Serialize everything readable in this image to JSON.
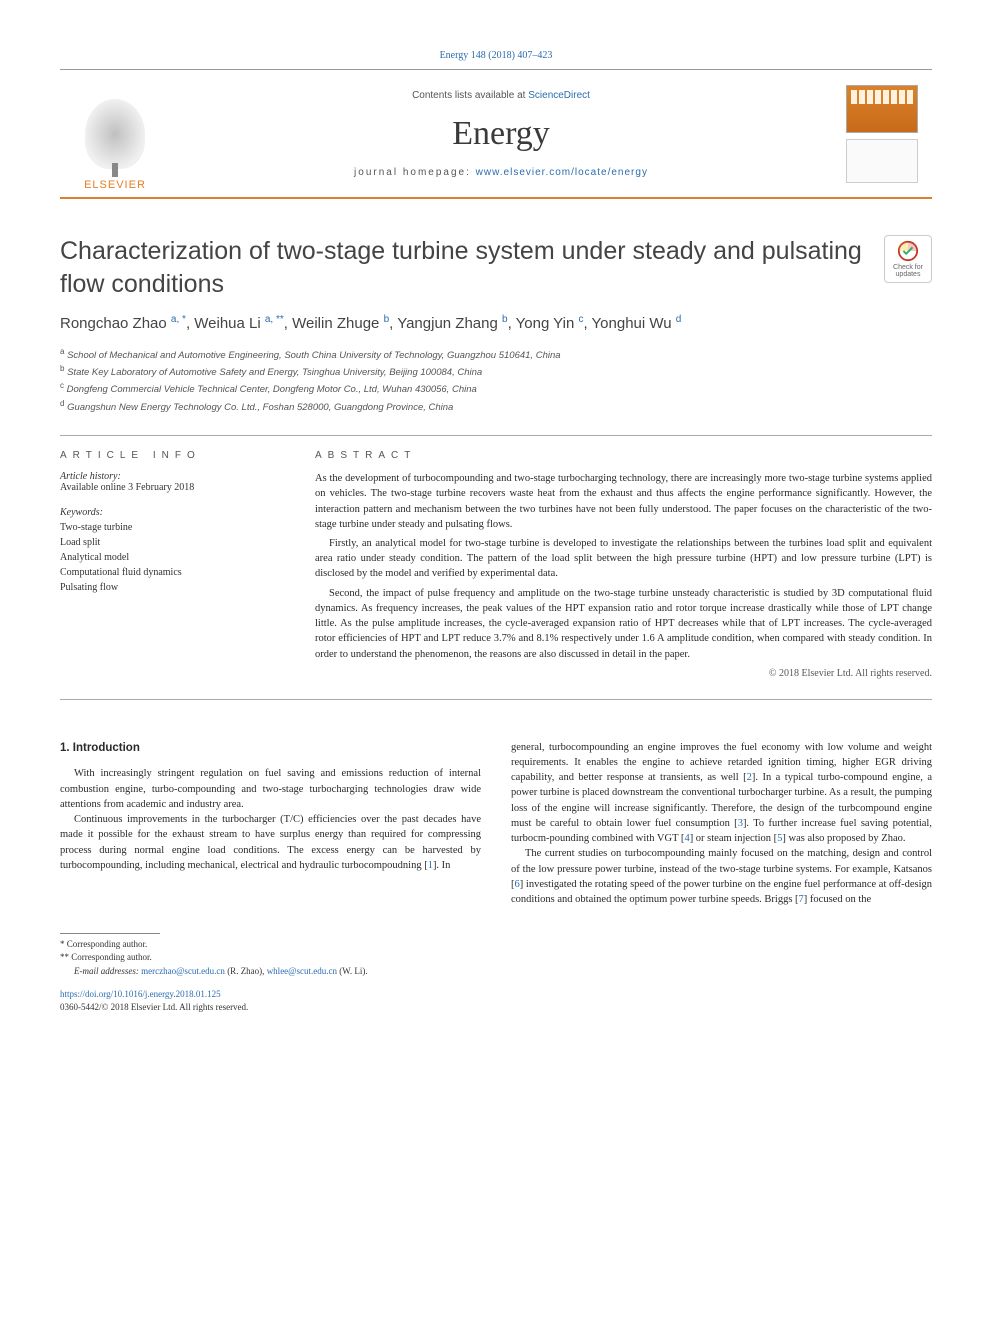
{
  "colors": {
    "accent_orange": "#d9822b",
    "link_blue": "#2b6cb0",
    "text_main": "#2a2a2a",
    "text_muted": "#555555",
    "rule_gray": "#aaaaaa",
    "background": "#ffffff"
  },
  "typography": {
    "body_fontsize": 10.5,
    "title_fontsize": 25,
    "journal_fontsize": 34,
    "section_head_letterspacing": 6
  },
  "citation": "Energy 148 (2018) 407–423",
  "header": {
    "contents_prefix": "Contents lists available at ",
    "contents_link": "ScienceDirect",
    "journal_name": "Energy",
    "homepage_label": "journal homepage: ",
    "homepage_url": "www.elsevier.com/locate/energy",
    "publisher_name": "ELSEVIER"
  },
  "updates_badge": {
    "line1": "Check for",
    "line2": "updates"
  },
  "title": "Characterization of two-stage turbine system under steady and pulsating flow conditions",
  "authors_html": "Rongchao Zhao <sup>a, *</sup>, Weihua Li <sup>a, **</sup>, Weilin Zhuge <sup>b</sup>, Yangjun Zhang <sup>b</sup>, Yong Yin <sup>c</sup>, Yonghui Wu <sup>d</sup>",
  "affiliations": [
    {
      "sup": "a",
      "text": "School of Mechanical and Automotive Engineering, South China University of Technology, Guangzhou 510641, China"
    },
    {
      "sup": "b",
      "text": "State Key Laboratory of Automotive Safety and Energy, Tsinghua University, Beijing 100084, China"
    },
    {
      "sup": "c",
      "text": "Dongfeng Commercial Vehicle Technical Center, Dongfeng Motor Co., Ltd, Wuhan 430056, China"
    },
    {
      "sup": "d",
      "text": "Guangshun New Energy Technology Co. Ltd., Foshan 528000, Guangdong Province, China"
    }
  ],
  "article_info": {
    "heading": "ARTICLE INFO",
    "history_label": "Article history:",
    "history_text": "Available online 3 February 2018",
    "keywords_label": "Keywords:",
    "keywords": [
      "Two-stage turbine",
      "Load split",
      "Analytical model",
      "Computational fluid dynamics",
      "Pulsating flow"
    ]
  },
  "abstract": {
    "heading": "ABSTRACT",
    "paragraphs": [
      "As the development of turbocompounding and two-stage turbocharging technology, there are increasingly more two-stage turbine systems applied on vehicles. The two-stage turbine recovers waste heat from the exhaust and thus affects the engine performance significantly. However, the interaction pattern and mechanism between the two turbines have not been fully understood. The paper focuses on the characteristic of the two-stage turbine under steady and pulsating flows.",
      "Firstly, an analytical model for two-stage turbine is developed to investigate the relationships between the turbines load split and equivalent area ratio under steady condition. The pattern of the load split between the high pressure turbine (HPT) and low pressure turbine (LPT) is disclosed by the model and verified by experimental data.",
      "Second, the impact of pulse frequency and amplitude on the two-stage turbine unsteady characteristic is studied by 3D computational fluid dynamics. As frequency increases, the peak values of the HPT expansion ratio and rotor torque increase drastically while those of LPT change little. As the pulse amplitude increases, the cycle-averaged expansion ratio of HPT decreases while that of LPT increases. The cycle-averaged rotor efficiencies of HPT and LPT reduce 3.7% and 8.1% respectively under 1.6 A amplitude condition, when compared with steady condition. In order to understand the phenomenon, the reasons are also discussed in detail in the paper."
    ],
    "copyright": "© 2018 Elsevier Ltd. All rights reserved."
  },
  "body": {
    "section_heading": "1. Introduction",
    "left_paras": [
      "With increasingly stringent regulation on fuel saving and emissions reduction of internal combustion engine, turbo-compounding and two-stage turbocharging technologies draw wide attentions from academic and industry area.",
      "Continuous improvements in the turbocharger (T/C) efficiencies over the past decades have made it possible for the exhaust stream to have surplus energy than required for compressing process during normal engine load conditions. The excess energy can be harvested by turbocompounding, including mechanical, electrical and hydraulic turbocompoudning [1]. In"
    ],
    "right_paras": [
      "general, turbocompounding an engine improves the fuel economy with low volume and weight requirements. It enables the engine to achieve retarded ignition timing, higher EGR driving capability, and better response at transients, as well [2]. In a typical turbo-compound engine, a power turbine is placed downstream the conventional turbocharger turbine. As a result, the pumping loss of the engine will increase significantly. Therefore, the design of the turbcompound engine must be careful to obtain lower fuel consumption [3]. To further increase fuel saving potential, turbocm-pounding combined with VGT [4] or steam injection [5] was also proposed by Zhao.",
      "The current studies on turbocompounding mainly focused on the matching, design and control of the low pressure power turbine, instead of the two-stage turbine systems. For example, Katsanos [6] investigated the rotating speed of the power turbine on the engine fuel performance at off-design conditions and obtained the optimum power turbine speeds. Briggs [7] focused on the"
    ],
    "ref_numbers": [
      "1",
      "2",
      "3",
      "4",
      "5",
      "6",
      "7"
    ]
  },
  "footnotes": {
    "star1": "* Corresponding author.",
    "star2": "** Corresponding author.",
    "emails_label": "E-mail addresses: ",
    "email1": "merczhao@scut.edu.cn",
    "email1_name": " (R. Zhao), ",
    "email2": "whlee@scut.edu.cn",
    "email2_name": " (W. Li)."
  },
  "doi": {
    "url": "https://doi.org/10.1016/j.energy.2018.01.125",
    "issn_line": "0360-5442/© 2018 Elsevier Ltd. All rights reserved."
  }
}
